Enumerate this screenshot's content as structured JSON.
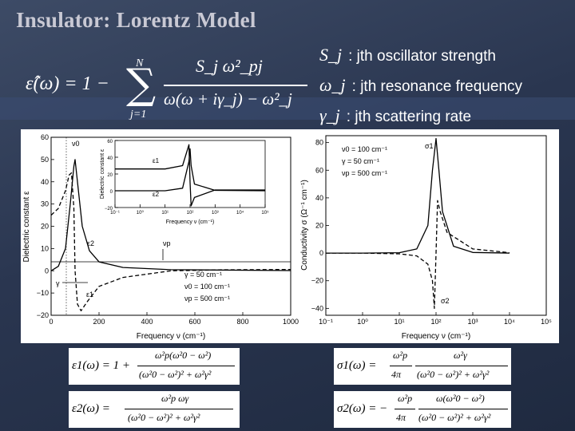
{
  "slide": {
    "title": "Insulator: Lorentz Model"
  },
  "main_equation": {
    "lhs": "ε̂(ω) = 1 −",
    "sum_upper": "N",
    "sum_lower": "j=1",
    "numerator": "S_j ω²_pj",
    "denominator": "ω(ω + iγ_j) − ω²_j"
  },
  "definitions": [
    {
      "symbol": "S_j",
      "text": ": jth oscillator strength"
    },
    {
      "symbol": "ω_j",
      "text": ": jth resonance frequency"
    },
    {
      "symbol": "γ_j",
      "text": ": jth scattering rate"
    }
  ],
  "left_plot": {
    "ylabel": "Dielectric constant ε",
    "xlabel": "Frequency ν (cm⁻¹)",
    "y_ticks": [
      "60",
      "50",
      "40",
      "30",
      "20",
      "10",
      "0",
      "−10",
      "−20"
    ],
    "x_ticks": [
      "0",
      "200",
      "400",
      "600",
      "800",
      "1000"
    ],
    "labels": {
      "nu0": "ν0",
      "eps2": "ε2",
      "eps1": "ε1",
      "nup": "νp",
      "gamma": "γ"
    },
    "params": [
      "γ = 50 cm⁻¹",
      "ν0 = 100 cm⁻¹",
      "νp = 500 cm⁻¹"
    ],
    "inset": {
      "ylabel": "Dielectric constant ε",
      "xlabel": "Frequency ν (cm⁻¹)",
      "y_ticks": [
        "60",
        "40",
        "20",
        "0",
        "−20"
      ],
      "x_ticks": [
        "10⁻¹",
        "10⁰",
        "10¹",
        "10²",
        "10³",
        "10⁴",
        "10⁵"
      ],
      "labels": {
        "eps1": "ε1",
        "eps2": "ε2"
      }
    }
  },
  "right_plot": {
    "ylabel": "Conductivity σ (Ω⁻¹ cm⁻¹)",
    "xlabel": "Frequency ν (cm⁻¹)",
    "y_ticks": [
      "80",
      "60",
      "40",
      "20",
      "0",
      "−20",
      "−40"
    ],
    "x_ticks": [
      "10⁻¹",
      "10⁰",
      "10¹",
      "10²",
      "10³",
      "10⁴",
      "10⁵"
    ],
    "labels": {
      "sigma1": "σ1",
      "sigma2": "σ2"
    },
    "params": [
      "ν0 = 100 cm⁻¹",
      "γ = 50 cm⁻¹",
      "νp = 500 cm⁻¹"
    ]
  },
  "chart_data": [
    {
      "type": "line",
      "title": "",
      "xlabel": "Frequency ν (cm⁻¹)",
      "ylabel": "Dielectric constant ε",
      "xlim": [
        0,
        1000
      ],
      "ylim": [
        -20,
        60
      ],
      "series": [
        {
          "name": "ε1",
          "style": "dashed",
          "x": [
            0,
            30,
            60,
            75,
            85,
            95,
            100,
            110,
            125,
            150,
            200,
            300,
            500,
            700,
            1000
          ],
          "y": [
            25,
            28,
            36,
            43,
            44,
            28,
            0,
            -15,
            -18,
            -14,
            -7,
            -3,
            0,
            0.4,
            0.6
          ]
        },
        {
          "name": "ε2",
          "style": "solid",
          "x": [
            0,
            30,
            60,
            80,
            95,
            100,
            110,
            130,
            160,
            200,
            300,
            500,
            1000
          ],
          "y": [
            0,
            2,
            10,
            30,
            47,
            50,
            40,
            20,
            9,
            4,
            1.5,
            0.5,
            0.1
          ]
        }
      ]
    },
    {
      "type": "line",
      "title": "",
      "xlabel": "Frequency ν (cm⁻¹)",
      "ylabel": "Dielectric constant ε",
      "x_scale": "log",
      "xlim": [
        0.1,
        100000
      ],
      "ylim": [
        -20,
        60
      ],
      "series": [
        {
          "name": "ε1",
          "style": "solid",
          "x": [
            0.1,
            10,
            50,
            90,
            100,
            110,
            150,
            1000,
            100000
          ],
          "y": [
            26,
            26,
            30,
            55,
            10,
            -18,
            -8,
            1,
            1
          ]
        },
        {
          "name": "ε2",
          "style": "solid",
          "x": [
            0.1,
            10,
            50,
            90,
            100,
            110,
            150,
            1000,
            100000
          ],
          "y": [
            0,
            0,
            3,
            35,
            50,
            30,
            8,
            0.5,
            0
          ]
        }
      ]
    },
    {
      "type": "line",
      "title": "",
      "xlabel": "Frequency ν (cm⁻¹)",
      "ylabel": "Conductivity σ (Ω⁻¹ cm⁻¹)",
      "x_scale": "log",
      "xlim": [
        0.1,
        100000
      ],
      "ylim": [
        -45,
        85
      ],
      "series": [
        {
          "name": "σ1",
          "style": "solid",
          "x": [
            0.1,
            1,
            10,
            30,
            60,
            80,
            100,
            120,
            150,
            300,
            1000,
            10000
          ],
          "y": [
            0,
            0,
            0.3,
            3,
            20,
            60,
            83,
            60,
            30,
            5,
            0.5,
            0
          ]
        },
        {
          "name": "σ2",
          "style": "dashed",
          "x": [
            0.1,
            1,
            10,
            30,
            60,
            80,
            90,
            100,
            110,
            130,
            200,
            1000,
            10000
          ],
          "y": [
            0,
            0,
            -0.5,
            -2,
            -8,
            -20,
            -40,
            0,
            38,
            30,
            15,
            3,
            0.3
          ]
        }
      ]
    }
  ],
  "bottom_equations": {
    "eps1": {
      "lhs": "ε1(ω) = 1 +",
      "num": "ω²p(ω²0 − ω²)",
      "den": "(ω²0 − ω²)² + ω²γ²"
    },
    "eps2": {
      "lhs": "ε2(ω) =",
      "num": "ω²p ωγ",
      "den": "(ω²0 − ω²)² + ω²γ²"
    },
    "sigma1": {
      "lhs": "σ1(ω) =",
      "pre_num": "ω²p",
      "pre_den": "4π",
      "num": "ω²γ",
      "den": "(ω²0 − ω²)² + ω²γ²"
    },
    "sigma2": {
      "lhs": "σ2(ω) = −",
      "pre_num": "ω²p",
      "pre_den": "4π",
      "num": "ω(ω²0 − ω²)",
      "den": "(ω²0 − ω²)² + ω²γ²"
    }
  }
}
